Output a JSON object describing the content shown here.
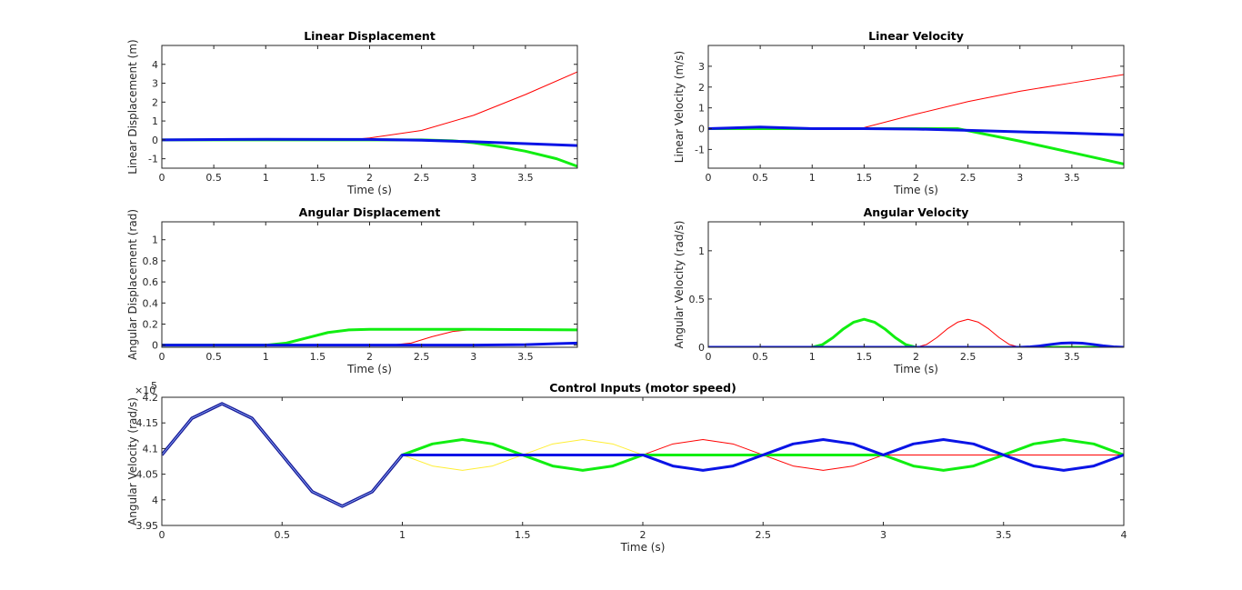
{
  "colors": {
    "background": "#ffffff",
    "axes": "#262626",
    "red": "#ff0000",
    "green": "#11ee11",
    "blue": "#0a14e6",
    "yellow": "#ffee33",
    "dark_blue": "#1a1a99"
  },
  "chart_data": [
    {
      "id": "lin-disp",
      "type": "line",
      "title": "Linear Displacement",
      "xlabel": "Time (s)",
      "ylabel": "Linear Displacement (m)",
      "xlim": [
        0,
        4
      ],
      "ylim": [
        -1.5,
        5
      ],
      "xticks": [
        0,
        0.5,
        1,
        1.5,
        2,
        2.5,
        3,
        3.5
      ],
      "xtick_labels": [
        "0",
        "0.5",
        "1",
        "1.5",
        "2",
        "2.5",
        "3",
        "3.5"
      ],
      "yticks": [
        -1,
        0,
        1,
        2,
        3,
        4
      ],
      "ytick_labels": [
        "-1",
        "0",
        "1",
        "2",
        "3",
        "4"
      ],
      "series": [
        {
          "color": "red",
          "width": 1,
          "x": [
            0,
            1.8,
            2,
            2.5,
            3,
            3.5,
            4
          ],
          "y": [
            0,
            0,
            0.1,
            0.5,
            1.3,
            2.4,
            3.6
          ]
        },
        {
          "color": "green",
          "width": 3,
          "x": [
            0,
            2.5,
            2.8,
            3,
            3.3,
            3.5,
            3.8,
            4
          ],
          "y": [
            0,
            0,
            -0.05,
            -0.15,
            -0.4,
            -0.6,
            -1.0,
            -1.4
          ]
        },
        {
          "color": "blue",
          "width": 3,
          "x": [
            0,
            1,
            2,
            2.5,
            3,
            3.5,
            4
          ],
          "y": [
            0,
            0.03,
            0.02,
            -0.02,
            -0.1,
            -0.2,
            -0.3
          ]
        }
      ]
    },
    {
      "id": "lin-vel",
      "type": "line",
      "title": "Linear Velocity",
      "xlabel": "Time (s)",
      "ylabel": "Linear Velocity (m/s)",
      "xlim": [
        0,
        4
      ],
      "ylim": [
        -1.9,
        4
      ],
      "xticks": [
        0,
        0.5,
        1,
        1.5,
        2,
        2.5,
        3,
        3.5
      ],
      "xtick_labels": [
        "0",
        "0.5",
        "1",
        "1.5",
        "2",
        "2.5",
        "3",
        "3.5"
      ],
      "yticks": [
        -1,
        0,
        1,
        2,
        3
      ],
      "ytick_labels": [
        "-1",
        "0",
        "1",
        "2",
        "3"
      ],
      "series": [
        {
          "color": "red",
          "width": 1,
          "x": [
            0,
            1.4,
            1.5,
            2,
            2.5,
            3,
            3.5,
            4
          ],
          "y": [
            0,
            0,
            0.05,
            0.7,
            1.3,
            1.8,
            2.2,
            2.6
          ]
        },
        {
          "color": "green",
          "width": 3,
          "x": [
            0,
            2.4,
            2.5,
            3,
            3.5,
            4
          ],
          "y": [
            0,
            0,
            -0.1,
            -0.6,
            -1.15,
            -1.7
          ]
        },
        {
          "color": "blue",
          "width": 3,
          "x": [
            0,
            0.25,
            0.5,
            0.75,
            1,
            1.5,
            2,
            2.5,
            3,
            3.5,
            4
          ],
          "y": [
            0,
            0.04,
            0.08,
            0.04,
            0,
            0,
            -0.02,
            -0.08,
            -0.15,
            -0.22,
            -0.3
          ]
        }
      ]
    },
    {
      "id": "ang-disp",
      "type": "line",
      "title": "Angular Displacement",
      "xlabel": "Time (s)",
      "ylabel": "Angular Displacement (rad)",
      "xlim": [
        0,
        4
      ],
      "ylim": [
        -0.02,
        1.17
      ],
      "xticks": [
        0,
        0.5,
        1,
        1.5,
        2,
        2.5,
        3,
        3.5
      ],
      "xtick_labels": [
        "0",
        "0.5",
        "1",
        "1.5",
        "2",
        "2.5",
        "3",
        "3.5"
      ],
      "yticks": [
        0,
        0.2,
        0.4,
        0.6,
        0.8,
        1
      ],
      "ytick_labels": [
        "0",
        "0.2",
        "0.4",
        "0.6",
        "0.8",
        "1"
      ],
      "series": [
        {
          "color": "red",
          "width": 1,
          "x": [
            0,
            2.2,
            2.4,
            2.6,
            2.8,
            3,
            3.2,
            4
          ],
          "y": [
            0,
            0,
            0.02,
            0.08,
            0.13,
            0.15,
            0.15,
            0.15
          ]
        },
        {
          "color": "green",
          "width": 3,
          "x": [
            0,
            1,
            1.2,
            1.4,
            1.6,
            1.8,
            2,
            3,
            4
          ],
          "y": [
            0,
            0,
            0.02,
            0.07,
            0.12,
            0.145,
            0.15,
            0.15,
            0.145
          ]
        },
        {
          "color": "blue",
          "width": 3,
          "x": [
            0,
            3,
            3.5,
            3.8,
            4
          ],
          "y": [
            0,
            0,
            0.005,
            0.015,
            0.02
          ]
        }
      ]
    },
    {
      "id": "ang-vel",
      "type": "line",
      "title": "Angular Velocity",
      "xlabel": "Time (s)",
      "ylabel": "Angular Velocity (rad/s)",
      "xlim": [
        0,
        4
      ],
      "ylim": [
        0,
        1.3
      ],
      "xticks": [
        0,
        0.5,
        1,
        1.5,
        2,
        2.5,
        3,
        3.5
      ],
      "xtick_labels": [
        "0",
        "0.5",
        "1",
        "1.5",
        "2",
        "2.5",
        "3",
        "3.5"
      ],
      "yticks": [
        0,
        0.5,
        1
      ],
      "ytick_labels": [
        "0",
        "0.5",
        "1"
      ],
      "series": [
        {
          "color": "red",
          "width": 1,
          "x": [
            0,
            2,
            2.1,
            2.2,
            2.3,
            2.4,
            2.5,
            2.6,
            2.7,
            2.8,
            2.9,
            3,
            4
          ],
          "y": [
            0,
            0,
            0.028,
            0.1,
            0.19,
            0.26,
            0.29,
            0.26,
            0.19,
            0.1,
            0.028,
            0,
            0
          ]
        },
        {
          "color": "green",
          "width": 3,
          "x": [
            0,
            1,
            1.1,
            1.2,
            1.3,
            1.4,
            1.5,
            1.6,
            1.7,
            1.8,
            1.9,
            2,
            4
          ],
          "y": [
            0,
            0,
            0.028,
            0.1,
            0.19,
            0.26,
            0.29,
            0.26,
            0.19,
            0.1,
            0.028,
            0,
            0
          ]
        },
        {
          "color": "blue",
          "width": 3,
          "x": [
            0,
            3,
            3.1,
            3.2,
            3.3,
            3.4,
            3.5,
            3.6,
            3.7,
            3.8,
            3.9,
            4
          ],
          "y": [
            0,
            0,
            0.005,
            0.015,
            0.03,
            0.042,
            0.046,
            0.042,
            0.03,
            0.015,
            0.005,
            0
          ]
        }
      ]
    },
    {
      "id": "control",
      "type": "line",
      "title": "Control Inputs (motor speed)",
      "xlabel": "Time (s)",
      "ylabel": "Angular Velocity (rad/s)",
      "exponent_label": "×10",
      "exponent_power": "5",
      "xlim": [
        0,
        4
      ],
      "ylim": [
        3.95,
        4.2
      ],
      "xticks": [
        0,
        0.5,
        1,
        1.5,
        2,
        2.5,
        3,
        3.5,
        4
      ],
      "xtick_labels": [
        "0",
        "0.5",
        "1",
        "1.5",
        "2",
        "2.5",
        "3",
        "3.5",
        "4"
      ],
      "yticks": [
        3.95,
        4,
        4.05,
        4.1,
        4.15,
        4.2
      ],
      "ytick_labels": [
        "3.95",
        "4",
        "4.05",
        "4.1",
        "4.15",
        "4.2"
      ],
      "series": [
        {
          "color": "dark_blue",
          "width": 3,
          "x": [
            0,
            0.125,
            0.25,
            0.375,
            0.5,
            0.625,
            0.75,
            0.875,
            1
          ],
          "y": [
            4.0875,
            4.159,
            4.1875,
            4.159,
            4.0875,
            4.016,
            3.9875,
            4.016,
            4.0875
          ]
        },
        {
          "color": "yellow",
          "width": 1,
          "x": [
            1,
            1.125,
            1.25,
            1.375,
            1.5,
            1.625,
            1.75,
            1.875,
            2,
            4
          ],
          "y": [
            4.0875,
            4.066,
            4.0575,
            4.066,
            4.0875,
            4.109,
            4.1175,
            4.109,
            4.0875,
            4.0875
          ]
        },
        {
          "color": "red",
          "width": 1,
          "x": [
            1,
            2,
            2.125,
            2.25,
            2.375,
            2.5,
            2.625,
            2.75,
            2.875,
            3,
            4
          ],
          "y": [
            4.0875,
            4.0875,
            4.109,
            4.1175,
            4.109,
            4.0875,
            4.066,
            4.0575,
            4.066,
            4.0875,
            4.0875
          ]
        },
        {
          "color": "green",
          "width": 3,
          "x": [
            1,
            1.125,
            1.25,
            1.375,
            1.5,
            1.625,
            1.75,
            1.875,
            2,
            3,
            3.125,
            3.25,
            3.375,
            3.5,
            3.625,
            3.75,
            3.875,
            4
          ],
          "y": [
            4.0875,
            4.109,
            4.1175,
            4.109,
            4.0875,
            4.066,
            4.0575,
            4.066,
            4.0875,
            4.0875,
            4.066,
            4.0575,
            4.066,
            4.0875,
            4.109,
            4.1175,
            4.109,
            4.0875
          ]
        },
        {
          "color": "blue",
          "width": 3,
          "x": [
            1,
            2,
            2.125,
            2.25,
            2.375,
            2.5,
            2.625,
            2.75,
            2.875,
            3,
            3.125,
            3.25,
            3.375,
            3.5,
            3.625,
            3.75,
            3.875,
            4
          ],
          "y": [
            4.0875,
            4.0875,
            4.066,
            4.0575,
            4.066,
            4.0875,
            4.109,
            4.1175,
            4.109,
            4.0875,
            4.109,
            4.1175,
            4.109,
            4.0875,
            4.066,
            4.0575,
            4.066,
            4.0875
          ]
        }
      ]
    }
  ]
}
